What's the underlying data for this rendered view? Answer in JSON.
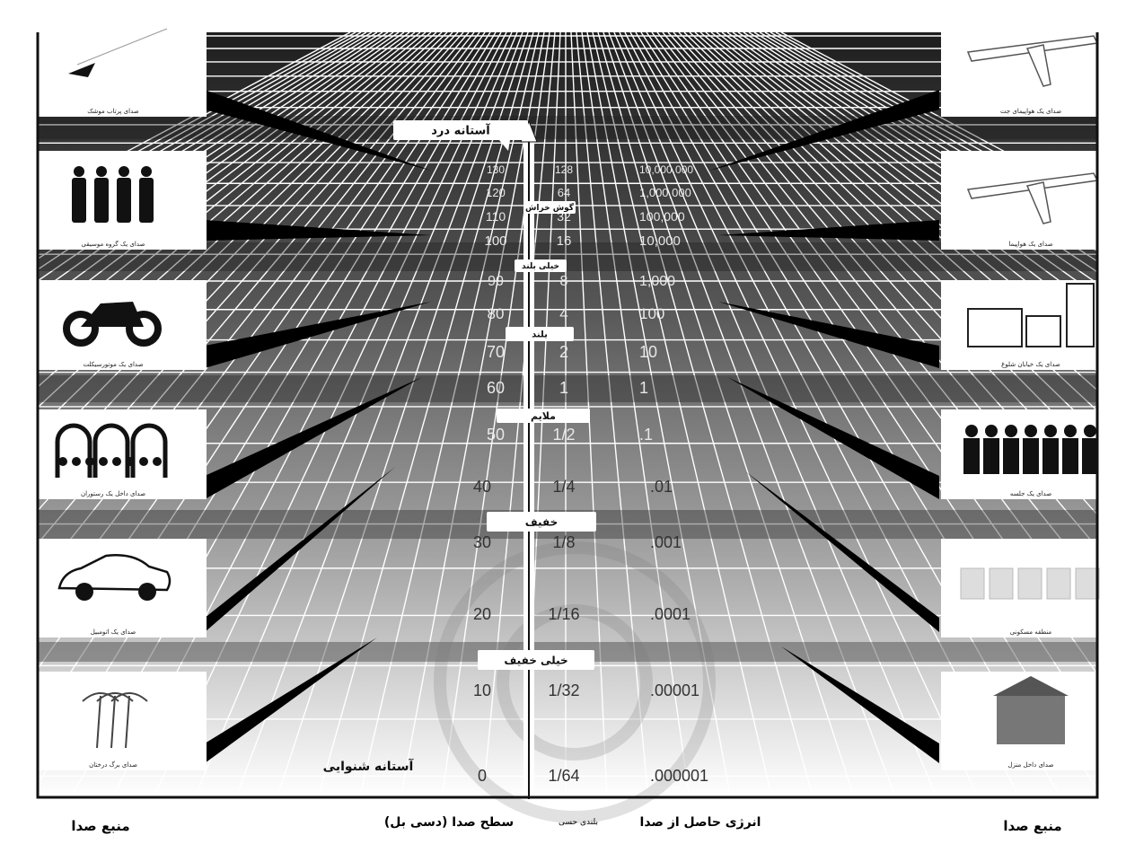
{
  "levels": {
    "pain": "آستانه درد",
    "deafening": "گوش خراش",
    "very_loud": "خیلی بلند",
    "loud": "بلند",
    "moderate": "ملایم",
    "faint": "خفیف",
    "very_faint": "خیلی خفیف",
    "hearing_threshold": "آستانه شنوایی"
  },
  "scale_rows": [
    {
      "db": "130",
      "loudness": "128",
      "energy": "10,000,000"
    },
    {
      "db": "120",
      "loudness": "64",
      "energy": "1,000,000"
    },
    {
      "db": "110",
      "loudness": "32",
      "energy": "100,000"
    },
    {
      "db": "100",
      "loudness": "16",
      "energy": "10,000"
    },
    {
      "db": "90",
      "loudness": "8",
      "energy": "1,000"
    },
    {
      "db": "80",
      "loudness": "4",
      "energy": "100"
    },
    {
      "db": "70",
      "loudness": "2",
      "energy": "10"
    },
    {
      "db": "60",
      "loudness": "1",
      "energy": "1"
    },
    {
      "db": "50",
      "loudness": "1/2",
      "energy": ".1"
    },
    {
      "db": "40",
      "loudness": "1/4",
      "energy": ".01"
    },
    {
      "db": "30",
      "loudness": "1/8",
      "energy": ".001"
    },
    {
      "db": "20",
      "loudness": "1/16",
      "energy": ".0001"
    },
    {
      "db": "10",
      "loudness": "1/32",
      "energy": ".00001"
    },
    {
      "db": "0",
      "loudness": "1/64",
      "energy": ".000001"
    }
  ],
  "left_sources": [
    {
      "icon": "rocket-icon",
      "caption": "صدای پرتاب موشک"
    },
    {
      "icon": "music-band-icon",
      "caption": "صدای یک گروه موسیقی"
    },
    {
      "icon": "motorcycle-icon",
      "caption": "صدای یک موتورسیکلت"
    },
    {
      "icon": "restaurant-icon",
      "caption": "صدای داخل یک رستوران"
    },
    {
      "icon": "car-icon",
      "caption": "صدای یک اتومبیل"
    },
    {
      "icon": "palm-trees-icon",
      "caption": "صدای برگ درختان"
    }
  ],
  "right_sources": [
    {
      "icon": "jet-plane-icon",
      "caption": "صدای یک هواپیمای جت"
    },
    {
      "icon": "airplane-icon",
      "caption": "صدای یک هواپیما"
    },
    {
      "icon": "buildings-icon",
      "caption": "صدای یک خیابان شلوغ"
    },
    {
      "icon": "meeting-icon",
      "caption": "صدای یک جلسه"
    },
    {
      "icon": "houses-icon",
      "caption": "منطقه مسکونی"
    },
    {
      "icon": "house-icon",
      "caption": "صدای داخل منزل"
    }
  ],
  "footer": {
    "source_left": "منبع صدا",
    "source_right": "منبع صدا",
    "db_axis": "سطح صدا (دسی بل)",
    "loudness_axis": "بلندی حسی",
    "energy_axis": "انرژی حاصل از صدا"
  },
  "colors": {
    "bar": "#1a1a1a",
    "grid_line": "#ffffff",
    "band": "#3a3a3a"
  }
}
